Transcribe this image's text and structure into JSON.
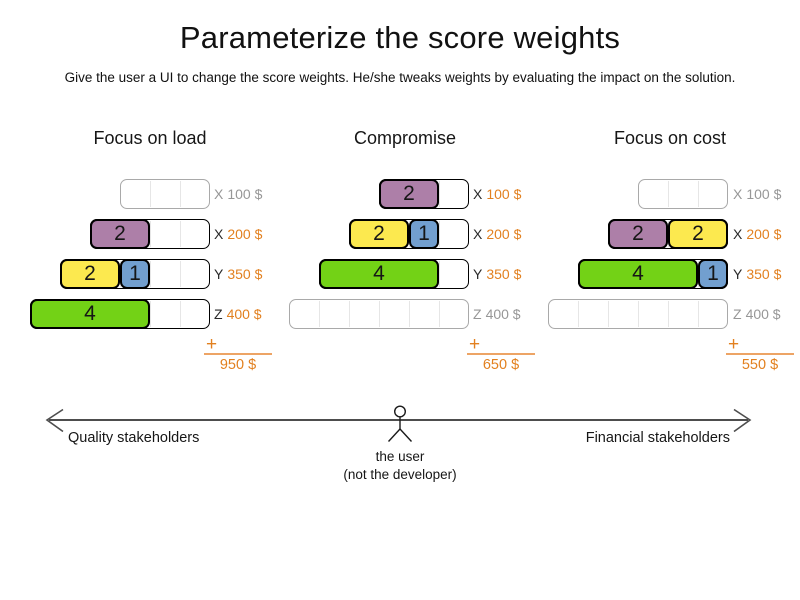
{
  "header": {
    "title": "Parameterize the score weights",
    "subtitle": "Give the user a UI to change the score weights. He/she tweaks weights by evaluating the impact on the solution."
  },
  "colors": {
    "purple": "#ad7fa8",
    "yellow": "#fce94f",
    "blue": "#729fcf",
    "green": "#73d216",
    "orange": "#e2801f",
    "orange_light": "#eda465",
    "gray_text": "#979797",
    "gray_border": "#a9a9a9",
    "arrow": "#4d4d4d"
  },
  "panels": [
    {
      "title": "Focus on load",
      "rows": [
        {
          "resource": "X",
          "cost": "100 $",
          "active": false,
          "capacity": 3,
          "blocks": []
        },
        {
          "resource": "X",
          "cost": "200 $",
          "active": true,
          "capacity": 4,
          "blocks": [
            {
              "value": "2",
              "color": "purple"
            }
          ]
        },
        {
          "resource": "Y",
          "cost": "350 $",
          "active": true,
          "capacity": 5,
          "blocks": [
            {
              "value": "2",
              "color": "yellow"
            },
            {
              "value": "1",
              "color": "blue"
            }
          ]
        },
        {
          "resource": "Z",
          "cost": "400 $",
          "active": true,
          "capacity": 6,
          "blocks": [
            {
              "value": "4",
              "color": "green"
            }
          ]
        }
      ],
      "plus": "+",
      "total": "950 $"
    },
    {
      "title": "Compromise",
      "rows": [
        {
          "resource": "X",
          "cost": "100 $",
          "active": true,
          "capacity": 3,
          "blocks": [
            {
              "value": "2",
              "color": "purple"
            }
          ]
        },
        {
          "resource": "X",
          "cost": "200 $",
          "active": true,
          "capacity": 4,
          "blocks": [
            {
              "value": "2",
              "color": "yellow"
            },
            {
              "value": "1",
              "color": "blue"
            }
          ]
        },
        {
          "resource": "Y",
          "cost": "350 $",
          "active": true,
          "capacity": 5,
          "blocks": [
            {
              "value": "4",
              "color": "green"
            }
          ]
        },
        {
          "resource": "Z",
          "cost": "400 $",
          "active": false,
          "capacity": 6,
          "blocks": []
        }
      ],
      "plus": "+",
      "total": "650 $"
    },
    {
      "title": "Focus on cost",
      "rows": [
        {
          "resource": "X",
          "cost": "100 $",
          "active": false,
          "capacity": 3,
          "blocks": []
        },
        {
          "resource": "X",
          "cost": "200 $",
          "active": true,
          "capacity": 4,
          "blocks": [
            {
              "value": "2",
              "color": "purple"
            },
            {
              "value": "2",
              "color": "yellow"
            }
          ]
        },
        {
          "resource": "Y",
          "cost": "350 $",
          "active": true,
          "capacity": 5,
          "blocks": [
            {
              "value": "4",
              "color": "green"
            },
            {
              "value": "1",
              "color": "blue"
            }
          ]
        },
        {
          "resource": "Z",
          "cost": "400 $",
          "active": false,
          "capacity": 6,
          "blocks": []
        }
      ],
      "plus": "+",
      "total": "550 $"
    }
  ],
  "axis": {
    "left_label": "Quality stakeholders",
    "right_label": "Financial stakeholders",
    "user_line1": "the user",
    "user_line2": "(not the developer)"
  }
}
